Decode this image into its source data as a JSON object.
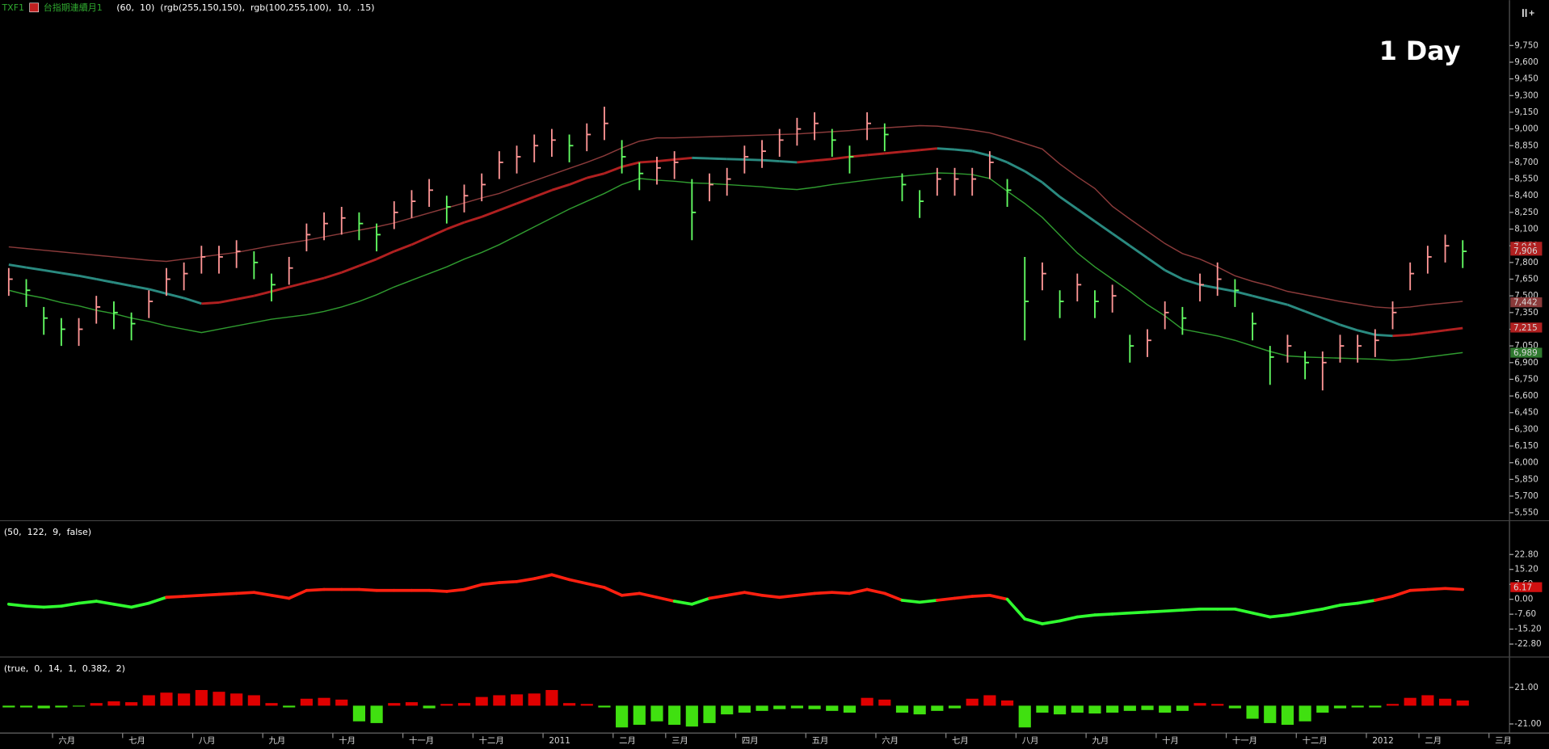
{
  "chart_data": [
    {
      "type": "ohlc",
      "symbol": "TXF1",
      "name": "台指期連續月1",
      "params": "(60,  10)  (rgb(255,150,150),  rgb(100,255,100),  10,  .15)",
      "annotation": "1 Day",
      "categories": [
        null,
        null,
        null,
        "六月",
        null,
        null,
        null,
        "七月",
        null,
        null,
        null,
        "八月",
        null,
        null,
        null,
        "九月",
        null,
        null,
        null,
        "十月",
        null,
        null,
        null,
        "十一月",
        null,
        null,
        null,
        "十二月",
        null,
        null,
        null,
        "2011",
        null,
        null,
        null,
        "二月",
        null,
        null,
        "三月",
        null,
        null,
        null,
        "四月",
        null,
        null,
        null,
        "五月",
        null,
        null,
        null,
        "六月",
        null,
        null,
        null,
        "七月",
        null,
        null,
        null,
        "八月",
        null,
        null,
        null,
        "九月",
        null,
        null,
        null,
        "十月",
        null,
        null,
        null,
        "十一月",
        null,
        null,
        null,
        "十二月",
        null,
        null,
        null,
        "2012",
        null,
        null,
        "二月",
        null,
        null,
        null,
        "三月"
      ],
      "high": [
        7750,
        7650,
        7400,
        7300,
        7300,
        7500,
        7450,
        7350,
        7550,
        7750,
        7800,
        7950,
        7950,
        8000,
        7900,
        7700,
        7850,
        8150,
        8250,
        8300,
        8250,
        8150,
        8350,
        8450,
        8550,
        8400,
        8500,
        8600,
        8800,
        8850,
        8950,
        9000,
        8950,
        9050,
        9200,
        8900,
        8700,
        8750,
        8800,
        8550,
        8600,
        8650,
        8850,
        8900,
        9000,
        9100,
        9150,
        9000,
        8850,
        9150,
        9050,
        8600,
        8450,
        8650,
        8650,
        8650,
        8800,
        8550,
        7850,
        7800,
        7550,
        7700,
        7550,
        7600,
        7150,
        7200,
        7450,
        7400,
        7700,
        7800,
        7650,
        7350,
        7050,
        7150,
        7000,
        7000,
        7150,
        7150,
        7200,
        7450,
        7800,
        7950,
        8050,
        8000,
        null,
        null
      ],
      "low": [
        7500,
        7400,
        7150,
        7050,
        7050,
        7250,
        7200,
        7100,
        7300,
        7500,
        7550,
        7700,
        7700,
        7750,
        7650,
        7450,
        7600,
        7900,
        8000,
        8050,
        8000,
        7900,
        8100,
        8200,
        8300,
        8150,
        8250,
        8350,
        8550,
        8600,
        8700,
        8750,
        8700,
        8800,
        8900,
        8600,
        8450,
        8500,
        8550,
        8000,
        8350,
        8400,
        8600,
        8650,
        8750,
        8850,
        8900,
        8750,
        8600,
        8900,
        8800,
        8350,
        8200,
        8400,
        8400,
        8400,
        8550,
        8300,
        7100,
        7550,
        7300,
        7450,
        7300,
        7350,
        6900,
        6950,
        7200,
        7150,
        7450,
        7500,
        7400,
        7100,
        6700,
        6900,
        6750,
        6650,
        6900,
        6900,
        6950,
        7200,
        7550,
        7700,
        7800,
        7750,
        null,
        null
      ],
      "close": [
        7650,
        7550,
        7300,
        7200,
        7200,
        7400,
        7350,
        7250,
        7450,
        7650,
        7700,
        7850,
        7850,
        7900,
        7800,
        7600,
        7750,
        8050,
        8150,
        8200,
        8150,
        8050,
        8250,
        8350,
        8450,
        8300,
        8400,
        8500,
        8700,
        8750,
        8850,
        8900,
        8850,
        8950,
        9050,
        8750,
        8600,
        8650,
        8700,
        8250,
        8500,
        8550,
        8750,
        8800,
        8900,
        9000,
        9050,
        8900,
        8750,
        9050,
        8950,
        8500,
        8350,
        8550,
        8550,
        8550,
        8700,
        8450,
        7450,
        7700,
        7450,
        7600,
        7450,
        7500,
        7050,
        7100,
        7350,
        7300,
        7600,
        7650,
        7550,
        7250,
        6950,
        7050,
        6900,
        6900,
        7050,
        7050,
        7100,
        7350,
        7700,
        7850,
        7950,
        7900,
        null,
        null
      ],
      "up_color": "#ff9696",
      "down_color": "#64ff64",
      "series": [
        {
          "color": "#8a3a3a",
          "values": [
            7940,
            7925,
            7910,
            7895,
            7880,
            7865,
            7850,
            7835,
            7820,
            7810,
            7830,
            7850,
            7870,
            7890,
            7920,
            7950,
            7975,
            8000,
            8030,
            8060,
            8090,
            8120,
            8155,
            8200,
            8245,
            8290,
            8335,
            8380,
            8420,
            8480,
            8535,
            8590,
            8645,
            8700,
            8760,
            8830,
            8890,
            8920,
            8920,
            8925,
            8930,
            8935,
            8940,
            8945,
            8950,
            8955,
            8965,
            8975,
            8985,
            9000,
            9010,
            9020,
            9030,
            9025,
            9010,
            8990,
            8965,
            8920,
            8870,
            8820,
            8685,
            8570,
            8465,
            8305,
            8190,
            8080,
            7970,
            7880,
            7830,
            7760,
            7680,
            7630,
            7590,
            7540,
            7510,
            7480,
            7450,
            7425,
            7400,
            7390,
            7400,
            7420,
            7435,
            7450,
            null,
            null
          ]
        },
        {
          "up_color": "#b02020",
          "down_color": "#2a8a80",
          "values": [
            7780,
            7755,
            7730,
            7705,
            7680,
            7650,
            7620,
            7590,
            7560,
            7520,
            7480,
            7430,
            7440,
            7470,
            7500,
            7540,
            7580,
            7620,
            7660,
            7710,
            7770,
            7830,
            7900,
            7960,
            8030,
            8100,
            8160,
            8210,
            8270,
            8330,
            8390,
            8450,
            8500,
            8560,
            8600,
            8660,
            8700,
            8710,
            8725,
            8740,
            8735,
            8730,
            8725,
            8720,
            8710,
            8700,
            8715,
            8730,
            8750,
            8765,
            8780,
            8795,
            8810,
            8825,
            8815,
            8800,
            8760,
            8700,
            8620,
            8520,
            8390,
            8280,
            8170,
            8060,
            7950,
            7840,
            7730,
            7650,
            7600,
            7570,
            7540,
            7500,
            7460,
            7420,
            7360,
            7300,
            7240,
            7190,
            7150,
            7140,
            7150,
            7170,
            7190,
            7210,
            null,
            null
          ]
        },
        {
          "color": "#2f9a2f",
          "values": [
            7550,
            7510,
            7480,
            7440,
            7410,
            7370,
            7340,
            7300,
            7270,
            7230,
            7200,
            7170,
            7200,
            7230,
            7260,
            7290,
            7310,
            7330,
            7360,
            7400,
            7450,
            7510,
            7580,
            7640,
            7700,
            7760,
            7830,
            7890,
            7960,
            8040,
            8120,
            8200,
            8280,
            8350,
            8420,
            8500,
            8555,
            8540,
            8530,
            8515,
            8510,
            8500,
            8490,
            8480,
            8465,
            8455,
            8475,
            8500,
            8520,
            8540,
            8560,
            8575,
            8590,
            8605,
            8600,
            8590,
            8555,
            8440,
            8330,
            8205,
            8045,
            7885,
            7760,
            7650,
            7540,
            7420,
            7320,
            7200,
            7170,
            7140,
            7100,
            7050,
            7000,
            6960,
            6950,
            6945,
            6940,
            6935,
            6930,
            6920,
            6930,
            6950,
            6970,
            6990,
            null,
            null
          ]
        }
      ],
      "ylim": [
        5479,
        10158
      ],
      "yticks": [
        {
          "value": 5550,
          "label": "5,550"
        },
        {
          "value": 5700,
          "label": "5,700"
        },
        {
          "value": 5850,
          "label": "5,850"
        },
        {
          "value": 6000,
          "label": "6,000"
        },
        {
          "value": 6150,
          "label": "6,150"
        },
        {
          "value": 6300,
          "label": "6,300"
        },
        {
          "value": 6450,
          "label": "6,450"
        },
        {
          "value": 6600,
          "label": "6,600"
        },
        {
          "value": 6750,
          "label": "6,750"
        },
        {
          "value": 6900,
          "label": "6,900"
        },
        {
          "value": 7050,
          "label": "7,050"
        },
        {
          "value": 7200,
          "label": "7,200"
        },
        {
          "value": 7350,
          "label": "7,350"
        },
        {
          "value": 7500,
          "label": "7,500"
        },
        {
          "value": 7650,
          "label": "7,650"
        },
        {
          "value": 7800,
          "label": "7,800"
        },
        {
          "value": 7950,
          "label": "7,950"
        },
        {
          "value": 8100,
          "label": "8,100"
        },
        {
          "value": 8250,
          "label": "8,250"
        },
        {
          "value": 8400,
          "label": "8,400"
        },
        {
          "value": 8550,
          "label": "8,550"
        },
        {
          "value": 8700,
          "label": "8,700"
        },
        {
          "value": 8850,
          "label": "8,850"
        },
        {
          "value": 9000,
          "label": "9,000"
        },
        {
          "value": 9150,
          "label": "9,150"
        },
        {
          "value": 9300,
          "label": "9,300"
        },
        {
          "value": 9450,
          "label": "9,450"
        },
        {
          "value": 9600,
          "label": "9,600"
        },
        {
          "value": 9750,
          "label": "9,750"
        }
      ],
      "price_tags": [
        {
          "value": 7941,
          "label": "7,941",
          "color": "#b02020"
        },
        {
          "value": 7906,
          "label": "7,906",
          "color": "#b02020"
        },
        {
          "value": 7442,
          "label": "7,442",
          "color": "#8a3a3a"
        },
        {
          "value": 7215,
          "label": "7,215",
          "color": "#b02020"
        },
        {
          "value": 6989,
          "label": "6,989",
          "color": "#2f7a2f"
        }
      ]
    },
    {
      "type": "line",
      "title": "(50,  122,  9,  false)",
      "pos_color": "#ff2010",
      "neg_color": "#30ff30",
      "values": [
        -2.5,
        -3.5,
        -4,
        -3.5,
        -2,
        -1,
        -2.5,
        -4,
        -2,
        1,
        1.5,
        2,
        2.5,
        3,
        3.5,
        2,
        0.5,
        4.5,
        5,
        5,
        5,
        4.5,
        4.5,
        4.5,
        4.5,
        4,
        5,
        7.5,
        8.5,
        9,
        10.5,
        12.5,
        10,
        8,
        6,
        2,
        3,
        1,
        -1,
        -2.5,
        0.5,
        2,
        3.5,
        2,
        1,
        2,
        3,
        3.5,
        3,
        5,
        3,
        -0.5,
        -1.5,
        -0.5,
        0.5,
        1.5,
        2,
        0,
        -10,
        -12.5,
        -11,
        -9,
        -8,
        -7.5,
        -7,
        -6.5,
        -6,
        -5.5,
        -5,
        -5,
        -5,
        -7,
        -9,
        -8,
        -6.5,
        -5,
        -3,
        -2,
        -0.5,
        1.5,
        4.5,
        5,
        5.5,
        5,
        null,
        null
      ],
      "ylim": [
        -29.4,
        39.5
      ],
      "yticks": [
        {
          "value": 22.8,
          "label": "22.80"
        },
        {
          "value": 15.2,
          "label": "15.20"
        },
        {
          "value": 7.6,
          "label": "7.60"
        },
        {
          "value": 0,
          "label": "0.00"
        },
        {
          "value": -7.6,
          "label": "-7.60"
        },
        {
          "value": -15.2,
          "label": "-15.20"
        },
        {
          "value": -22.8,
          "label": "-22.80"
        }
      ],
      "price_tags": [
        {
          "value": 6.17,
          "label": "6.17",
          "color": "#d01010"
        }
      ]
    },
    {
      "type": "bar",
      "title": "(true,  0,  14,  1,  0.382,  2)",
      "pos_color": "#e00000",
      "neg_color": "#40e010",
      "values": [
        -2,
        -2,
        -3,
        -2,
        -1,
        3,
        5,
        4,
        12,
        15,
        14,
        18,
        16,
        14,
        12,
        3,
        -2,
        8,
        9,
        7,
        -18,
        -20,
        3,
        4,
        -3,
        2,
        3,
        10,
        12,
        13,
        14,
        18,
        3,
        2,
        -2,
        -25,
        -22,
        -18,
        -22,
        -24,
        -20,
        -10,
        -8,
        -6,
        -4,
        -3,
        -4,
        -6,
        -8,
        9,
        7,
        -8,
        -10,
        -6,
        -3,
        8,
        12,
        6,
        -25,
        -8,
        -10,
        -8,
        -9,
        -8,
        -6,
        -5,
        -8,
        -6,
        3,
        2,
        -3,
        -15,
        -20,
        -22,
        -18,
        -8,
        -3,
        -2,
        -2,
        2,
        9,
        12,
        8,
        6,
        null,
        null
      ],
      "ylim": [
        -31.5,
        54.8
      ],
      "yticks": [
        {
          "value": 21,
          "label": "21.00"
        },
        {
          "value": -21,
          "label": "-21.00"
        }
      ]
    }
  ]
}
